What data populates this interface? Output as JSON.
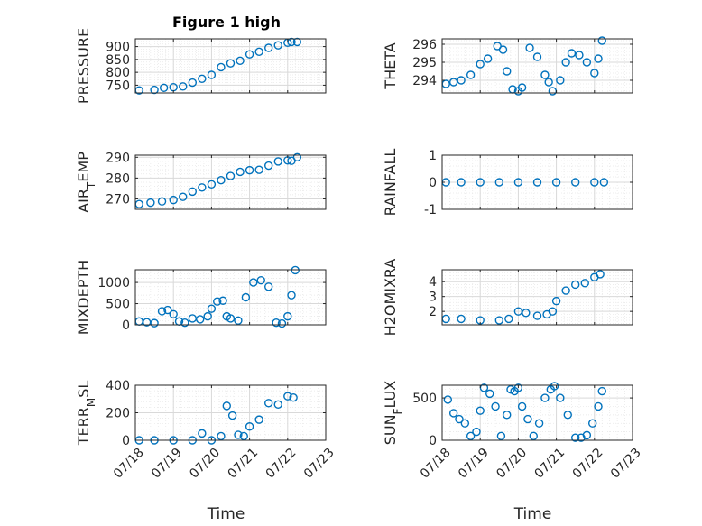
{
  "figure": {
    "title": "Figure 1 high",
    "marker_color": "#0072bd",
    "grid_color": "#d9d9d9",
    "axis_color": "#262626"
  },
  "chart_data": [
    {
      "type": "scatter",
      "ylabel": "PRESSURE",
      "xlabel": "",
      "xlim": [
        0,
        5
      ],
      "ylim": [
        720,
        930
      ],
      "yticks": [
        750,
        800,
        850,
        900
      ],
      "ytick_labels": [
        "750",
        "800",
        "850",
        "900"
      ],
      "xticks": [
        0,
        1,
        2,
        3,
        4,
        5
      ],
      "xtick_labels": [],
      "grid": true,
      "series": [
        {
          "x": [
            0.1,
            0.5,
            0.75,
            1.0,
            1.25,
            1.5,
            1.75,
            2.0,
            2.25,
            2.5,
            2.75,
            3.0,
            3.25,
            3.5,
            3.75,
            4.0,
            4.1,
            4.25
          ],
          "y": [
            730,
            732,
            740,
            742,
            745,
            760,
            775,
            790,
            820,
            835,
            845,
            870,
            880,
            895,
            905,
            915,
            918,
            918
          ]
        }
      ]
    },
    {
      "type": "scatter",
      "ylabel": "THETA",
      "xlabel": "",
      "xlim": [
        0,
        5
      ],
      "ylim": [
        293.3,
        296.3
      ],
      "yticks": [
        294,
        295,
        296
      ],
      "ytick_labels": [
        "294",
        "295",
        "296"
      ],
      "xticks": [
        0,
        1,
        2,
        3,
        4,
        5
      ],
      "xtick_labels": [],
      "grid": true,
      "series": [
        {
          "x": [
            0.1,
            0.3,
            0.5,
            0.75,
            1.0,
            1.2,
            1.45,
            1.6,
            1.7,
            1.85,
            2.0,
            2.1,
            2.3,
            2.5,
            2.7,
            2.8,
            2.9,
            3.1,
            3.25,
            3.4,
            3.6,
            3.8,
            4.0,
            4.1,
            4.2
          ],
          "y": [
            293.8,
            293.9,
            294.0,
            294.3,
            294.9,
            295.2,
            295.9,
            295.7,
            294.5,
            293.5,
            293.4,
            293.6,
            295.8,
            295.3,
            294.3,
            293.9,
            293.4,
            294.0,
            295.0,
            295.5,
            295.4,
            295.0,
            294.4,
            295.2,
            296.2
          ]
        }
      ]
    },
    {
      "type": "scatter",
      "ylabel": "AIR_TEMP",
      "xlabel": "",
      "xlim": [
        0,
        5
      ],
      "ylim": [
        265,
        291
      ],
      "yticks": [
        270,
        280,
        290
      ],
      "ytick_labels": [
        "270",
        "280",
        "290"
      ],
      "xticks": [
        0,
        1,
        2,
        3,
        4,
        5
      ],
      "xtick_labels": [],
      "grid": true,
      "series": [
        {
          "x": [
            0.1,
            0.4,
            0.7,
            1.0,
            1.25,
            1.5,
            1.75,
            2.0,
            2.25,
            2.5,
            2.75,
            3.0,
            3.25,
            3.5,
            3.75,
            4.0,
            4.1,
            4.25
          ],
          "y": [
            267.5,
            268.2,
            268.8,
            269.5,
            271.0,
            273.5,
            275.5,
            277.0,
            279.0,
            281.0,
            283.0,
            283.8,
            284.0,
            286.0,
            288.0,
            288.5,
            288.3,
            290.0
          ]
        }
      ]
    },
    {
      "type": "scatter",
      "ylabel": "RAINFALL",
      "xlabel": "",
      "xlim": [
        0,
        5
      ],
      "ylim": [
        -1,
        1
      ],
      "yticks": [
        -1,
        0,
        1
      ],
      "ytick_labels": [
        "-1",
        "0",
        "1"
      ],
      "xticks": [
        0,
        1,
        2,
        3,
        4,
        5
      ],
      "xtick_labels": [],
      "grid": true,
      "series": [
        {
          "x": [
            0.1,
            0.5,
            1.0,
            1.5,
            2.0,
            2.5,
            3.0,
            3.5,
            4.0,
            4.25
          ],
          "y": [
            0,
            0,
            0,
            0,
            0,
            0,
            0,
            0,
            0,
            0
          ]
        }
      ]
    },
    {
      "type": "scatter",
      "ylabel": "MIXDEPTH",
      "xlabel": "",
      "xlim": [
        0,
        5
      ],
      "ylim": [
        0,
        1300
      ],
      "yticks": [
        0,
        500,
        1000
      ],
      "ytick_labels": [
        "0",
        "500",
        "1000"
      ],
      "xticks": [
        0,
        1,
        2,
        3,
        4,
        5
      ],
      "xtick_labels": [],
      "grid": true,
      "series": [
        {
          "x": [
            0.1,
            0.3,
            0.5,
            0.7,
            0.85,
            1.0,
            1.15,
            1.3,
            1.5,
            1.7,
            1.9,
            2.0,
            2.15,
            2.3,
            2.4,
            2.5,
            2.7,
            2.9,
            3.1,
            3.3,
            3.5,
            3.7,
            3.85,
            4.0,
            4.1,
            4.2
          ],
          "y": [
            80,
            60,
            40,
            320,
            350,
            250,
            80,
            50,
            150,
            130,
            200,
            380,
            550,
            570,
            200,
            150,
            100,
            650,
            1000,
            1050,
            900,
            50,
            30,
            200,
            700,
            1290
          ]
        }
      ]
    },
    {
      "type": "scatter",
      "ylabel": "H2OMIXRA",
      "xlabel": "",
      "xlim": [
        0,
        5
      ],
      "ylim": [
        1.1,
        4.8
      ],
      "yticks": [
        2,
        3,
        4
      ],
      "ytick_labels": [
        "2",
        "3",
        "4"
      ],
      "xticks": [
        0,
        1,
        2,
        3,
        4,
        5
      ],
      "xtick_labels": [],
      "grid": true,
      "series": [
        {
          "x": [
            0.1,
            0.5,
            1.0,
            1.5,
            1.75,
            2.0,
            2.2,
            2.5,
            2.75,
            2.9,
            3.0,
            3.25,
            3.5,
            3.75,
            4.0,
            4.15
          ],
          "y": [
            1.5,
            1.5,
            1.4,
            1.4,
            1.5,
            2.0,
            1.9,
            1.7,
            1.8,
            2.0,
            2.7,
            3.4,
            3.8,
            3.9,
            4.3,
            4.5
          ]
        }
      ]
    },
    {
      "type": "scatter",
      "ylabel": "TERR_MSL",
      "xlabel": "Time",
      "xlim": [
        0,
        5
      ],
      "ylim": [
        0,
        400
      ],
      "yticks": [
        0,
        200,
        400
      ],
      "ytick_labels": [
        "0",
        "200",
        "400"
      ],
      "xticks": [
        0,
        1,
        2,
        3,
        4,
        5
      ],
      "xtick_labels": [
        "07/18",
        "07/19",
        "07/20",
        "07/21",
        "07/22",
        "07/23"
      ],
      "grid": true,
      "series": [
        {
          "x": [
            0.1,
            0.5,
            1.0,
            1.5,
            1.75,
            2.0,
            2.25,
            2.4,
            2.55,
            2.7,
            2.85,
            3.0,
            3.25,
            3.5,
            3.75,
            4.0,
            4.15
          ],
          "y": [
            0,
            0,
            0,
            0,
            50,
            0,
            30,
            250,
            180,
            40,
            30,
            100,
            150,
            270,
            260,
            320,
            310
          ]
        }
      ]
    },
    {
      "type": "scatter",
      "ylabel": "SUN_FLUX",
      "xlabel": "Time",
      "xlim": [
        0,
        5
      ],
      "ylim": [
        0,
        650
      ],
      "yticks": [
        0,
        500
      ],
      "ytick_labels": [
        "0",
        "500"
      ],
      "xticks": [
        0,
        1,
        2,
        3,
        4,
        5
      ],
      "xtick_labels": [
        "07/18",
        "07/19",
        "07/20",
        "07/21",
        "07/22",
        "07/23"
      ],
      "grid": true,
      "series": [
        {
          "x": [
            0.15,
            0.3,
            0.45,
            0.6,
            0.75,
            0.9,
            1.0,
            1.1,
            1.25,
            1.4,
            1.55,
            1.7,
            1.8,
            1.9,
            2.0,
            2.1,
            2.25,
            2.4,
            2.55,
            2.7,
            2.85,
            2.95,
            3.1,
            3.3,
            3.5,
            3.65,
            3.8,
            3.95,
            4.1,
            4.2
          ],
          "y": [
            480,
            320,
            250,
            200,
            50,
            100,
            350,
            620,
            550,
            400,
            50,
            300,
            600,
            580,
            620,
            400,
            250,
            50,
            200,
            500,
            600,
            640,
            500,
            300,
            30,
            30,
            60,
            200,
            400,
            580
          ]
        }
      ]
    }
  ]
}
